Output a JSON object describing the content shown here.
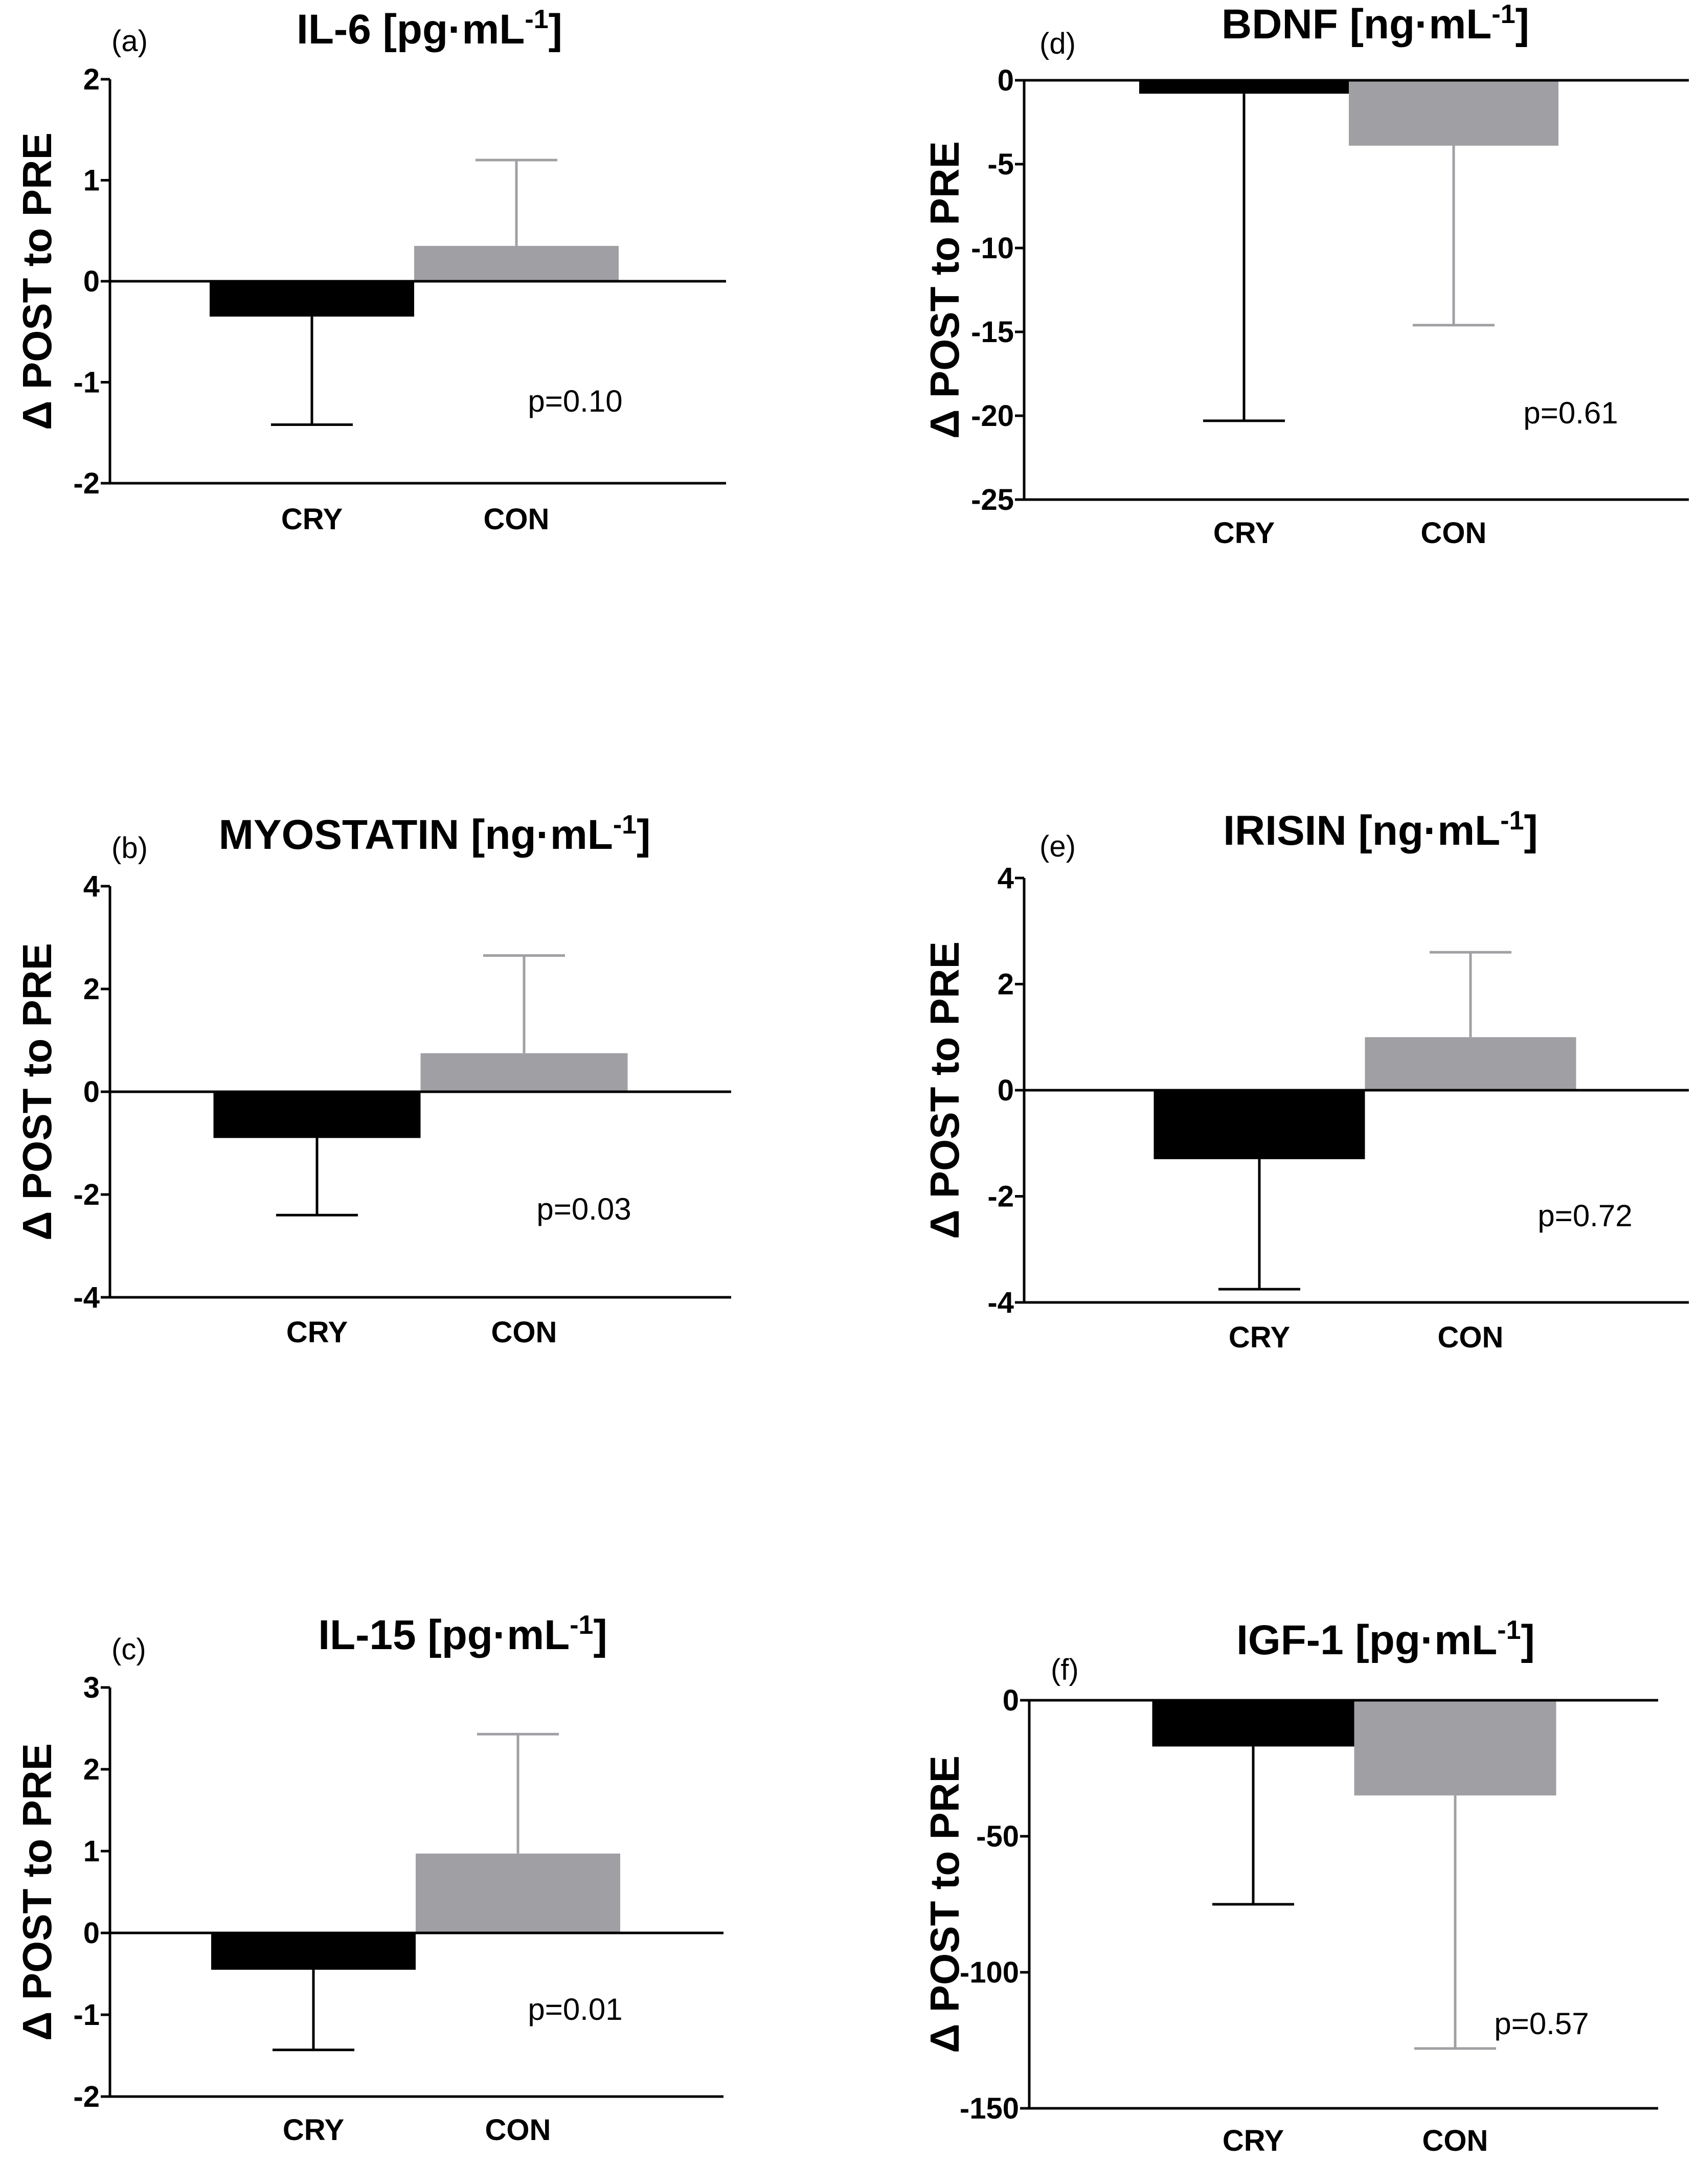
{
  "chart_data": [
    {
      "id": "a",
      "type": "bar",
      "panel_label": "(a)",
      "title": "IL-6 [pg·mL",
      "title_sup": "-1",
      "title_end": "]",
      "ylabel": "Δ POST to PRE",
      "categories": [
        "CRY",
        "CON"
      ],
      "values": [
        -0.35,
        0.35
      ],
      "error_bars": [
        -1.42,
        1.2
      ],
      "bar_colors": [
        "#000000",
        "#a0a0a4"
      ],
      "ylim": [
        -2,
        2
      ],
      "yticks": [
        2,
        1,
        0,
        -1,
        -2
      ],
      "ytick_labels": [
        "2",
        "1",
        "0",
        "-1",
        "-2"
      ],
      "annotation": "p=0.10"
    },
    {
      "id": "b",
      "type": "bar",
      "panel_label": "(b)",
      "title": "MYOSTATIN [ng·mL",
      "title_sup": "-1",
      "title_end": "]",
      "ylabel": "Δ POST to PRE",
      "categories": [
        "CRY",
        "CON"
      ],
      "values": [
        -0.9,
        0.75
      ],
      "error_bars": [
        -2.4,
        2.65
      ],
      "bar_colors": [
        "#000000",
        "#a0a0a4"
      ],
      "ylim": [
        -4,
        4
      ],
      "yticks": [
        4,
        2,
        0,
        -2,
        -4
      ],
      "ytick_labels": [
        "4",
        "2",
        "0",
        "-2",
        "-4"
      ],
      "annotation": "p=0.03"
    },
    {
      "id": "c",
      "type": "bar",
      "panel_label": "(c)",
      "title": "IL-15 [pg·mL",
      "title_sup": "-1",
      "title_end": "]",
      "ylabel": "Δ POST to PRE",
      "categories": [
        "CRY",
        "CON"
      ],
      "values": [
        -0.45,
        0.97
      ],
      "error_bars": [
        -1.43,
        2.43
      ],
      "bar_colors": [
        "#000000",
        "#a0a0a4"
      ],
      "ylim": [
        -2,
        3
      ],
      "yticks": [
        3,
        2,
        1,
        0,
        -1,
        -2
      ],
      "ytick_labels": [
        "3",
        "2",
        "1",
        "0",
        "-1",
        "-2"
      ],
      "annotation": "p=0.01"
    },
    {
      "id": "d",
      "type": "bar",
      "panel_label": "(d)",
      "title": "BDNF [ng·mL",
      "title_sup": "-1",
      "title_end": "]",
      "ylabel": "Δ POST to PRE",
      "categories": [
        "CRY",
        "CON"
      ],
      "values": [
        -0.8,
        -3.9
      ],
      "error_bars": [
        -20.3,
        -14.6
      ],
      "bar_colors": [
        "#000000",
        "#a0a0a4"
      ],
      "ylim": [
        -25,
        0
      ],
      "yticks": [
        0,
        -5,
        -10,
        -15,
        -20,
        -25
      ],
      "ytick_labels": [
        "0",
        "-5",
        "-10",
        "-15",
        "-20",
        "-25"
      ],
      "annotation": "p=0.61"
    },
    {
      "id": "e",
      "type": "bar",
      "panel_label": "(e)",
      "title": "IRISIN [ng·mL",
      "title_sup": "-1",
      "title_end": "]",
      "ylabel": "Δ POST to PRE",
      "categories": [
        "CRY",
        "CON"
      ],
      "values": [
        -1.3,
        1.0
      ],
      "error_bars": [
        -3.75,
        2.6
      ],
      "bar_colors": [
        "#000000",
        "#a0a0a4"
      ],
      "ylim": [
        -4,
        4
      ],
      "yticks": [
        4,
        2,
        0,
        -2,
        -4
      ],
      "ytick_labels": [
        "4",
        "2",
        "0",
        "-2",
        "-4"
      ],
      "annotation": "p=0.72"
    },
    {
      "id": "f",
      "type": "bar",
      "panel_label": "(f)",
      "title": "IGF-1 [pg·mL",
      "title_sup": "-1",
      "title_end": "]",
      "ylabel": "Δ POST to PRE",
      "categories": [
        "CRY",
        "CON"
      ],
      "values": [
        -17,
        -35
      ],
      "error_bars": [
        -75,
        -128
      ],
      "bar_colors": [
        "#000000",
        "#a0a0a4"
      ],
      "ylim": [
        -150,
        0
      ],
      "yticks": [
        0,
        -50,
        -100,
        -150
      ],
      "ytick_labels": [
        "0",
        "-50",
        "-100",
        "-150"
      ],
      "annotation": "p=0.57"
    }
  ]
}
